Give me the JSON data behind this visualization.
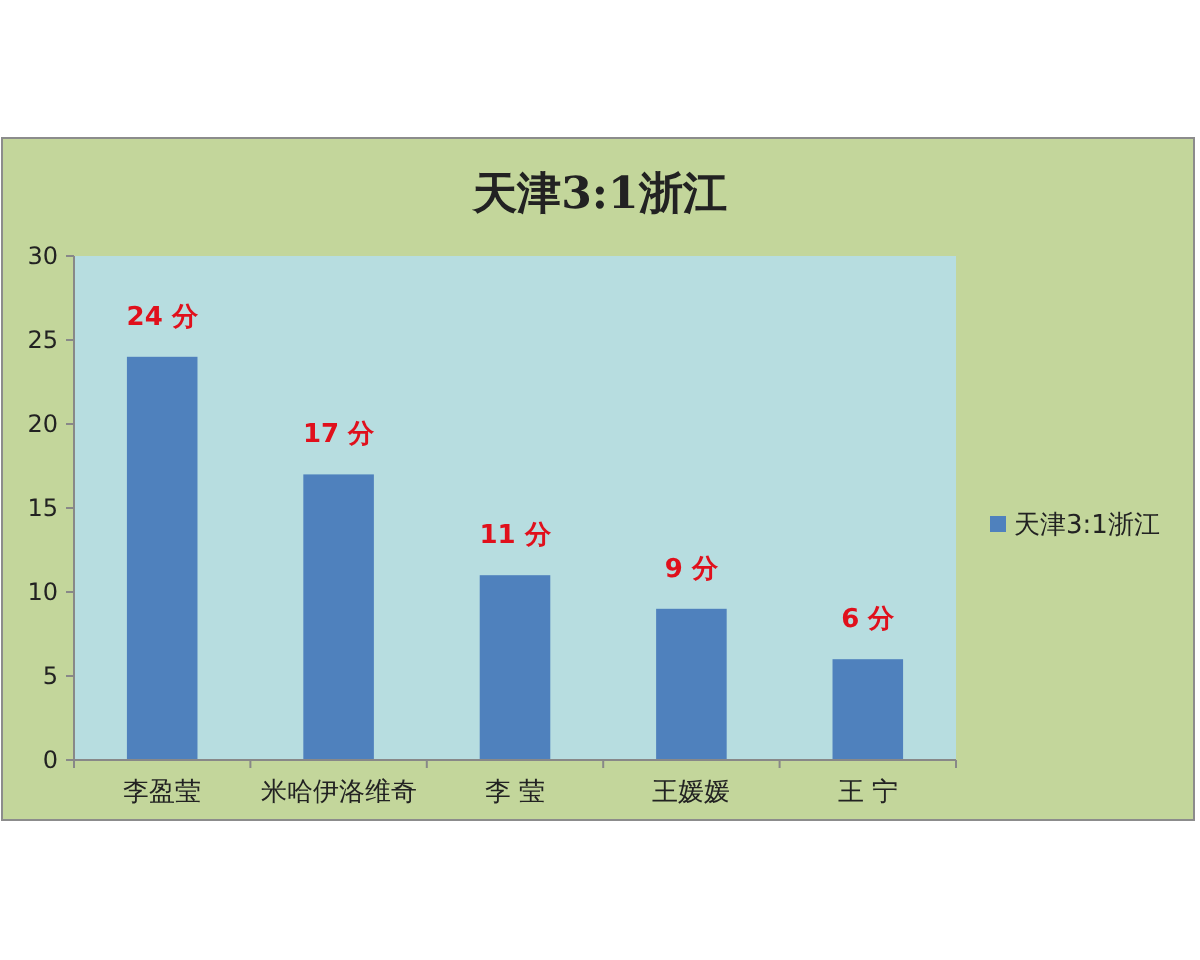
{
  "chart_data": {
    "type": "bar",
    "title": "天津3:1浙江",
    "categories": [
      "李盈莹",
      "米哈伊洛维奇",
      "李 莹",
      "王媛媛",
      "王 宁"
    ],
    "series": [
      {
        "name": "天津3:1浙江",
        "color": "#4f81bd",
        "values": [
          24,
          17,
          11,
          9,
          6
        ]
      }
    ],
    "value_labels": [
      "24 分",
      "17 分",
      "11 分",
      "9 分",
      "6 分"
    ],
    "ylim": [
      0,
      30
    ],
    "yticks": [
      0,
      5,
      10,
      15,
      20,
      25,
      30
    ],
    "grid": false,
    "legend": "right"
  }
}
